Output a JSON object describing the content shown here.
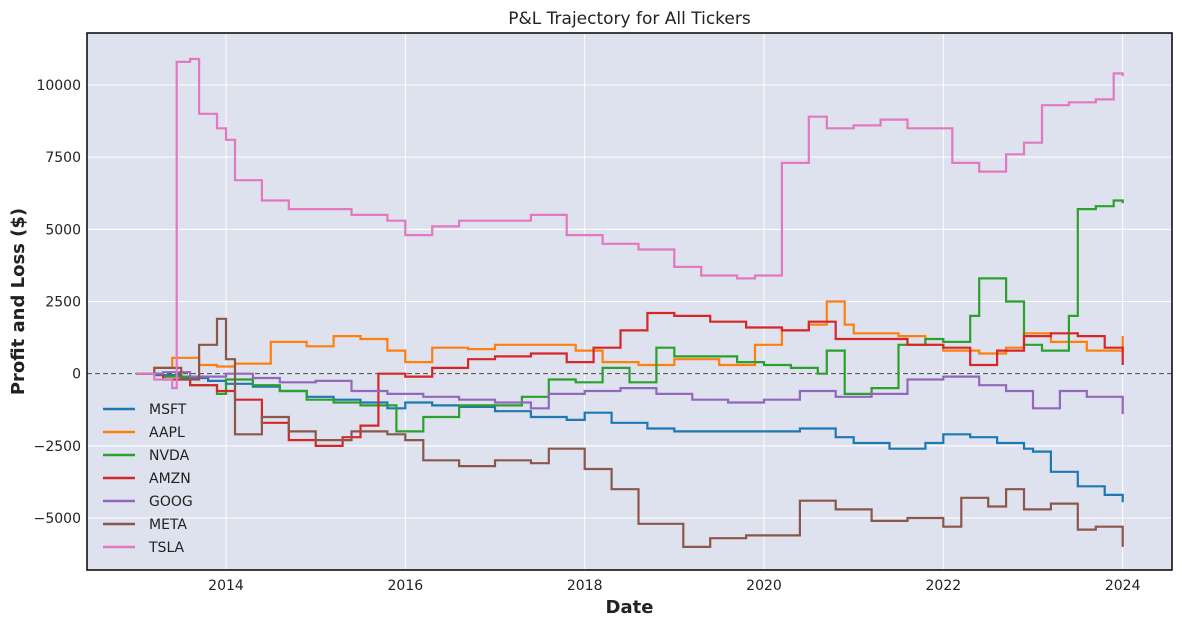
{
  "chart_data": {
    "type": "line",
    "style": "step",
    "title": "P&L Trajectory for All Tickers",
    "xlabel": "Date",
    "ylabel": "Profit and Loss ($)",
    "xlim": [
      2012.45,
      2024.55
    ],
    "ylim": [
      -6800,
      11800
    ],
    "xticks": [
      2014,
      2016,
      2018,
      2020,
      2022,
      2024
    ],
    "xtick_labels": [
      "2014",
      "2016",
      "2018",
      "2020",
      "2022",
      "2024"
    ],
    "yticks": [
      -5000,
      -2500,
      0,
      2500,
      5000,
      7500,
      10000
    ],
    "ytick_labels": [
      "−5000",
      "−2500",
      "0",
      "2500",
      "5000",
      "7500",
      "10000"
    ],
    "grid": true,
    "background": "#dde2ee",
    "zero_line": {
      "y": 0,
      "style": "dashed",
      "color": "#444444"
    },
    "legend_position": "lower-left",
    "series": [
      {
        "name": "MSFT",
        "color": "#1f77b4",
        "points": [
          [
            2013.0,
            0
          ],
          [
            2013.2,
            -50
          ],
          [
            2013.5,
            -150
          ],
          [
            2013.8,
            -250
          ],
          [
            2014.0,
            -350
          ],
          [
            2014.3,
            -450
          ],
          [
            2014.6,
            -600
          ],
          [
            2014.9,
            -800
          ],
          [
            2015.2,
            -900
          ],
          [
            2015.5,
            -1000
          ],
          [
            2015.8,
            -1200
          ],
          [
            2016.0,
            -1000
          ],
          [
            2016.3,
            -1100
          ],
          [
            2016.6,
            -1150
          ],
          [
            2017.0,
            -1300
          ],
          [
            2017.4,
            -1500
          ],
          [
            2017.8,
            -1600
          ],
          [
            2018.0,
            -1350
          ],
          [
            2018.3,
            -1700
          ],
          [
            2018.7,
            -1900
          ],
          [
            2019.0,
            -2000
          ],
          [
            2019.5,
            -2000
          ],
          [
            2020.0,
            -2000
          ],
          [
            2020.4,
            -1900
          ],
          [
            2020.8,
            -2200
          ],
          [
            2021.0,
            -2400
          ],
          [
            2021.4,
            -2600
          ],
          [
            2021.8,
            -2400
          ],
          [
            2022.0,
            -2100
          ],
          [
            2022.3,
            -2200
          ],
          [
            2022.6,
            -2400
          ],
          [
            2022.9,
            -2600
          ],
          [
            2023.0,
            -2700
          ],
          [
            2023.2,
            -3400
          ],
          [
            2023.5,
            -3900
          ],
          [
            2023.8,
            -4200
          ],
          [
            2024.0,
            -4450
          ]
        ]
      },
      {
        "name": "AAPL",
        "color": "#ff7f0e",
        "points": [
          [
            2013.0,
            0
          ],
          [
            2013.2,
            200
          ],
          [
            2013.4,
            550
          ],
          [
            2013.7,
            300
          ],
          [
            2013.9,
            250
          ],
          [
            2014.1,
            350
          ],
          [
            2014.5,
            1100
          ],
          [
            2014.9,
            950
          ],
          [
            2015.2,
            1300
          ],
          [
            2015.5,
            1200
          ],
          [
            2015.8,
            800
          ],
          [
            2016.0,
            400
          ],
          [
            2016.3,
            900
          ],
          [
            2016.7,
            850
          ],
          [
            2017.0,
            1000
          ],
          [
            2017.5,
            1000
          ],
          [
            2017.9,
            800
          ],
          [
            2018.2,
            400
          ],
          [
            2018.6,
            300
          ],
          [
            2019.0,
            500
          ],
          [
            2019.5,
            300
          ],
          [
            2019.9,
            1000
          ],
          [
            2020.2,
            1500
          ],
          [
            2020.5,
            1700
          ],
          [
            2020.7,
            2500
          ],
          [
            2020.9,
            1700
          ],
          [
            2021.0,
            1400
          ],
          [
            2021.5,
            1300
          ],
          [
            2021.8,
            1000
          ],
          [
            2022.0,
            800
          ],
          [
            2022.4,
            700
          ],
          [
            2022.7,
            900
          ],
          [
            2022.9,
            1400
          ],
          [
            2023.2,
            1100
          ],
          [
            2023.6,
            800
          ],
          [
            2024.0,
            1300
          ]
        ]
      },
      {
        "name": "NVDA",
        "color": "#2ca02c",
        "points": [
          [
            2013.0,
            0
          ],
          [
            2013.3,
            -100
          ],
          [
            2013.6,
            -400
          ],
          [
            2013.9,
            -700
          ],
          [
            2014.0,
            -200
          ],
          [
            2014.3,
            -400
          ],
          [
            2014.6,
            -600
          ],
          [
            2014.9,
            -900
          ],
          [
            2015.2,
            -1000
          ],
          [
            2015.5,
            -1100
          ],
          [
            2015.9,
            -2000
          ],
          [
            2016.2,
            -1500
          ],
          [
            2016.6,
            -1100
          ],
          [
            2017.0,
            -1100
          ],
          [
            2017.3,
            -800
          ],
          [
            2017.6,
            -200
          ],
          [
            2017.9,
            -300
          ],
          [
            2018.2,
            200
          ],
          [
            2018.5,
            -300
          ],
          [
            2018.8,
            900
          ],
          [
            2019.0,
            600
          ],
          [
            2019.3,
            600
          ],
          [
            2019.7,
            400
          ],
          [
            2020.0,
            300
          ],
          [
            2020.3,
            200
          ],
          [
            2020.6,
            0
          ],
          [
            2020.7,
            800
          ],
          [
            2020.9,
            -700
          ],
          [
            2021.2,
            -500
          ],
          [
            2021.5,
            1000
          ],
          [
            2021.8,
            1200
          ],
          [
            2022.0,
            1100
          ],
          [
            2022.3,
            2000
          ],
          [
            2022.4,
            3300
          ],
          [
            2022.7,
            2500
          ],
          [
            2022.9,
            1000
          ],
          [
            2023.1,
            800
          ],
          [
            2023.4,
            2000
          ],
          [
            2023.5,
            5700
          ],
          [
            2023.7,
            5800
          ],
          [
            2023.9,
            6000
          ],
          [
            2024.0,
            5900
          ]
        ]
      },
      {
        "name": "AMZN",
        "color": "#d62728",
        "points": [
          [
            2013.0,
            0
          ],
          [
            2013.3,
            -200
          ],
          [
            2013.6,
            -400
          ],
          [
            2013.9,
            -600
          ],
          [
            2014.1,
            -900
          ],
          [
            2014.4,
            -1700
          ],
          [
            2014.7,
            -2300
          ],
          [
            2015.0,
            -2500
          ],
          [
            2015.3,
            -2200
          ],
          [
            2015.5,
            -1800
          ],
          [
            2015.7,
            0
          ],
          [
            2016.0,
            -100
          ],
          [
            2016.3,
            200
          ],
          [
            2016.7,
            500
          ],
          [
            2017.0,
            600
          ],
          [
            2017.4,
            700
          ],
          [
            2017.8,
            400
          ],
          [
            2018.1,
            900
          ],
          [
            2018.4,
            1500
          ],
          [
            2018.7,
            2100
          ],
          [
            2019.0,
            2000
          ],
          [
            2019.4,
            1800
          ],
          [
            2019.8,
            1600
          ],
          [
            2020.2,
            1500
          ],
          [
            2020.5,
            1800
          ],
          [
            2020.8,
            1200
          ],
          [
            2021.2,
            1200
          ],
          [
            2021.6,
            1000
          ],
          [
            2022.0,
            900
          ],
          [
            2022.3,
            300
          ],
          [
            2022.6,
            800
          ],
          [
            2022.9,
            1300
          ],
          [
            2023.2,
            1400
          ],
          [
            2023.5,
            1300
          ],
          [
            2023.8,
            900
          ],
          [
            2024.0,
            300
          ]
        ]
      },
      {
        "name": "GOOG",
        "color": "#9467bd",
        "points": [
          [
            2013.0,
            0
          ],
          [
            2013.3,
            50
          ],
          [
            2013.6,
            -100
          ],
          [
            2014.0,
            0
          ],
          [
            2014.3,
            -150
          ],
          [
            2014.6,
            -300
          ],
          [
            2015.0,
            -250
          ],
          [
            2015.4,
            -600
          ],
          [
            2015.8,
            -700
          ],
          [
            2016.2,
            -800
          ],
          [
            2016.6,
            -900
          ],
          [
            2017.0,
            -1000
          ],
          [
            2017.4,
            -1200
          ],
          [
            2017.6,
            -700
          ],
          [
            2018.0,
            -600
          ],
          [
            2018.4,
            -500
          ],
          [
            2018.8,
            -700
          ],
          [
            2019.2,
            -900
          ],
          [
            2019.6,
            -1000
          ],
          [
            2020.0,
            -900
          ],
          [
            2020.4,
            -600
          ],
          [
            2020.8,
            -800
          ],
          [
            2021.2,
            -700
          ],
          [
            2021.6,
            -200
          ],
          [
            2022.0,
            -100
          ],
          [
            2022.4,
            -400
          ],
          [
            2022.7,
            -600
          ],
          [
            2023.0,
            -1200
          ],
          [
            2023.3,
            -600
          ],
          [
            2023.6,
            -800
          ],
          [
            2024.0,
            -1400
          ]
        ]
      },
      {
        "name": "META",
        "color": "#8c564b",
        "points": [
          [
            2013.0,
            0
          ],
          [
            2013.2,
            200
          ],
          [
            2013.5,
            -200
          ],
          [
            2013.7,
            1000
          ],
          [
            2013.9,
            1900
          ],
          [
            2014.0,
            500
          ],
          [
            2014.1,
            -2100
          ],
          [
            2014.4,
            -1500
          ],
          [
            2014.7,
            -2000
          ],
          [
            2015.0,
            -2300
          ],
          [
            2015.4,
            -2000
          ],
          [
            2015.8,
            -2100
          ],
          [
            2016.0,
            -2300
          ],
          [
            2016.2,
            -3000
          ],
          [
            2016.6,
            -3200
          ],
          [
            2017.0,
            -3000
          ],
          [
            2017.4,
            -3100
          ],
          [
            2017.6,
            -2600
          ],
          [
            2018.0,
            -3300
          ],
          [
            2018.3,
            -4000
          ],
          [
            2018.6,
            -5200
          ],
          [
            2019.0,
            -5200
          ],
          [
            2019.1,
            -6000
          ],
          [
            2019.4,
            -5700
          ],
          [
            2019.8,
            -5600
          ],
          [
            2020.2,
            -5600
          ],
          [
            2020.4,
            -4400
          ],
          [
            2020.8,
            -4700
          ],
          [
            2021.2,
            -5100
          ],
          [
            2021.6,
            -5000
          ],
          [
            2022.0,
            -5300
          ],
          [
            2022.2,
            -4300
          ],
          [
            2022.5,
            -4600
          ],
          [
            2022.7,
            -4000
          ],
          [
            2022.9,
            -4700
          ],
          [
            2023.2,
            -4500
          ],
          [
            2023.5,
            -5400
          ],
          [
            2023.7,
            -5300
          ],
          [
            2024.0,
            -6000
          ]
        ]
      },
      {
        "name": "TSLA",
        "color": "#e377c2",
        "points": [
          [
            2013.0,
            0
          ],
          [
            2013.2,
            -200
          ],
          [
            2013.4,
            -500
          ],
          [
            2013.45,
            10800
          ],
          [
            2013.6,
            10900
          ],
          [
            2013.7,
            9000
          ],
          [
            2013.9,
            8500
          ],
          [
            2014.0,
            8100
          ],
          [
            2014.1,
            6700
          ],
          [
            2014.4,
            6000
          ],
          [
            2014.7,
            5700
          ],
          [
            2015.0,
            5700
          ],
          [
            2015.4,
            5500
          ],
          [
            2015.8,
            5300
          ],
          [
            2016.0,
            4800
          ],
          [
            2016.3,
            5100
          ],
          [
            2016.6,
            5300
          ],
          [
            2017.0,
            5300
          ],
          [
            2017.4,
            5500
          ],
          [
            2017.8,
            4800
          ],
          [
            2018.2,
            4500
          ],
          [
            2018.6,
            4300
          ],
          [
            2019.0,
            3700
          ],
          [
            2019.3,
            3400
          ],
          [
            2019.7,
            3300
          ],
          [
            2019.9,
            3400
          ],
          [
            2020.2,
            7300
          ],
          [
            2020.5,
            8900
          ],
          [
            2020.7,
            8500
          ],
          [
            2021.0,
            8600
          ],
          [
            2021.3,
            8800
          ],
          [
            2021.6,
            8500
          ],
          [
            2022.0,
            8500
          ],
          [
            2022.1,
            7300
          ],
          [
            2022.4,
            7000
          ],
          [
            2022.7,
            7600
          ],
          [
            2022.9,
            8000
          ],
          [
            2023.1,
            9300
          ],
          [
            2023.4,
            9400
          ],
          [
            2023.7,
            9500
          ],
          [
            2023.9,
            10400
          ],
          [
            2024.0,
            10300
          ]
        ]
      }
    ]
  }
}
